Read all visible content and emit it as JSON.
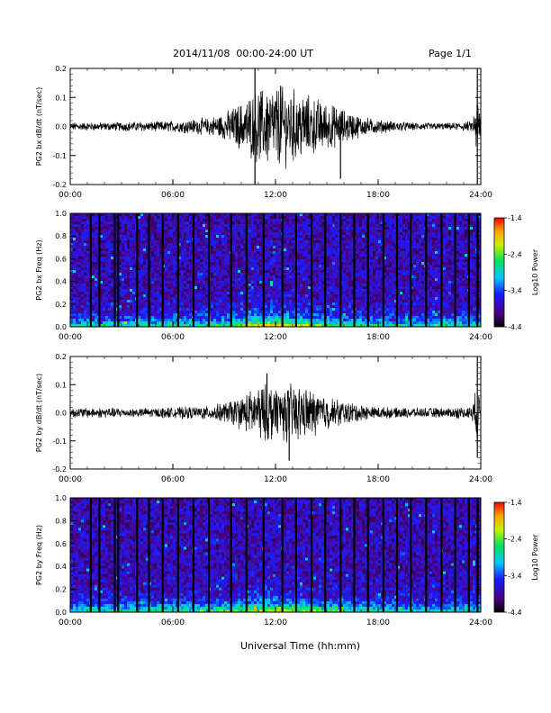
{
  "header": {
    "title": "2014/11/08  00:00-24:00 UT",
    "page": "Page 1/1"
  },
  "xlabel": "Universal Time (hh:mm)",
  "chart_data": [
    {
      "type": "line",
      "ylabel": "PG2 bx dB/dt (nT/sec)",
      "xticks": [
        "00:00",
        "06:00",
        "12:00",
        "18:00",
        "24:00"
      ],
      "xlim": [
        0,
        24
      ],
      "ylim": [
        -0.2,
        0.2
      ],
      "yticks": [
        "0.2",
        "0.1",
        "0.0",
        "-0.1",
        "-0.2"
      ],
      "envelope": {
        "hours": [
          0,
          2,
          4,
          6,
          8,
          9,
          10,
          10.5,
          11,
          12,
          13,
          14,
          15,
          16,
          17,
          18,
          19,
          20,
          22,
          23.5,
          23.8,
          24
        ],
        "amplitude": [
          0.012,
          0.012,
          0.014,
          0.016,
          0.025,
          0.04,
          0.07,
          0.09,
          0.11,
          0.12,
          0.11,
          0.09,
          0.07,
          0.05,
          0.03,
          0.02,
          0.015,
          0.012,
          0.01,
          0.015,
          0.1,
          0.05
        ]
      },
      "spikes": [
        {
          "hour": 10.8,
          "value": 0.2
        },
        {
          "hour": 10.8,
          "value": -0.2
        },
        {
          "hour": 12.3,
          "value": 0.14
        },
        {
          "hour": 15.8,
          "value": -0.18
        },
        {
          "hour": 23.8,
          "value": 0.2
        },
        {
          "hour": 23.8,
          "value": -0.2
        }
      ]
    },
    {
      "type": "heatmap",
      "ylabel": "PG2 bx Freq (Hz)",
      "xticks": [
        "00:00",
        "06:00",
        "12:00",
        "18:00",
        "24:00"
      ],
      "xlim": [
        0,
        24
      ],
      "ylim": [
        0,
        1.0
      ],
      "yticks": [
        "1.0",
        "0.8",
        "0.6",
        "0.4",
        "0.2",
        "0.0"
      ],
      "colorbar": {
        "label": "Log10 Power",
        "ticks": [
          "-1.4",
          "-2.4",
          "-3.4",
          "-4.4"
        ],
        "range": [
          -4.4,
          -1.4
        ]
      },
      "gap_hours": [
        1.2,
        1.7,
        2.6,
        2.8,
        3.9,
        4.6,
        5.4,
        6.3,
        7.2,
        8.1,
        9.4,
        10.3,
        11.3,
        12.4,
        13.2,
        14.1,
        14.9,
        15.8,
        16.6,
        17.4,
        18.3,
        19.1,
        19.9,
        20.8,
        21.7,
        22.5,
        23.3,
        23.8
      ]
    },
    {
      "type": "line",
      "ylabel": "PG2 by dB/dt (nT/sec)",
      "xticks": [
        "00:00",
        "06:00",
        "12:00",
        "18:00",
        "24:00"
      ],
      "xlim": [
        0,
        24
      ],
      "ylim": [
        -0.2,
        0.2
      ],
      "yticks": [
        "0.2",
        "0.1",
        "0.0",
        "-0.1",
        "-0.2"
      ],
      "envelope": {
        "hours": [
          0,
          2,
          4,
          6,
          8,
          9,
          10,
          11,
          12,
          13,
          14,
          15,
          16,
          17,
          18,
          19,
          20,
          22,
          23.5,
          23.8,
          24
        ],
        "amplitude": [
          0.015,
          0.015,
          0.014,
          0.016,
          0.02,
          0.03,
          0.05,
          0.08,
          0.09,
          0.085,
          0.07,
          0.05,
          0.035,
          0.025,
          0.018,
          0.015,
          0.015,
          0.015,
          0.02,
          0.09,
          0.04
        ]
      },
      "spikes": [
        {
          "hour": 12.8,
          "value": -0.17
        },
        {
          "hour": 11.5,
          "value": 0.14
        },
        {
          "hour": 23.8,
          "value": 0.2
        },
        {
          "hour": 23.8,
          "value": -0.16
        }
      ]
    },
    {
      "type": "heatmap",
      "ylabel": "PG2 by Freq (Hz)",
      "xticks": [
        "00:00",
        "06:00",
        "12:00",
        "18:00",
        "24:00"
      ],
      "xlim": [
        0,
        24
      ],
      "ylim": [
        0,
        1.0
      ],
      "yticks": [
        "1.0",
        "0.8",
        "0.6",
        "0.4",
        "0.2",
        "0.0"
      ],
      "colorbar": {
        "label": "Log10 Power",
        "ticks": [
          "-1.4",
          "-2.4",
          "-3.4",
          "-4.4"
        ],
        "range": [
          -4.4,
          -1.4
        ]
      },
      "gap_hours": [
        1.2,
        1.7,
        2.6,
        2.8,
        3.9,
        4.6,
        5.4,
        6.3,
        7.2,
        8.1,
        9.4,
        10.3,
        11.3,
        12.4,
        13.2,
        14.1,
        14.9,
        15.8,
        16.6,
        17.4,
        18.3,
        19.1,
        19.9,
        20.8,
        21.7,
        22.5,
        23.3,
        23.8
      ]
    }
  ]
}
